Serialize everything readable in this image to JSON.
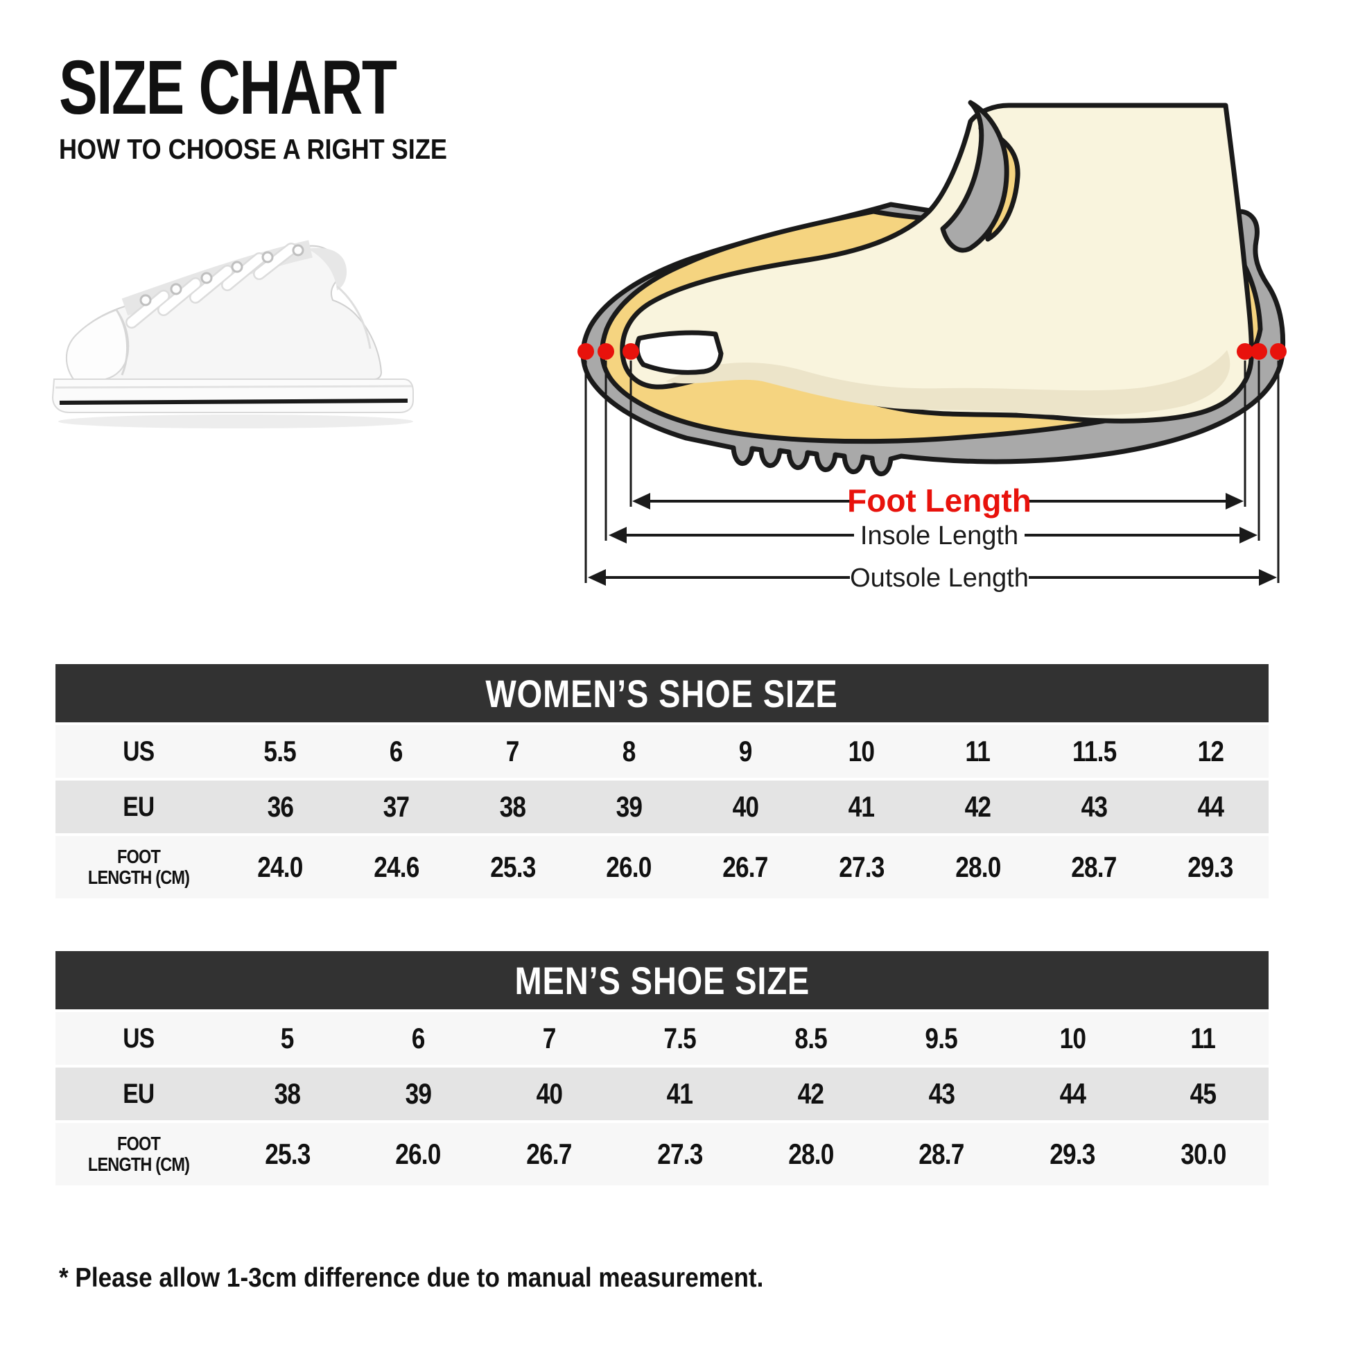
{
  "header": {
    "title": "SIZE CHART",
    "subtitle": "HOW TO CHOOSE A RIGHT SIZE"
  },
  "diagram": {
    "foot_length_label": "Foot Length",
    "insole_length_label": "Insole Length",
    "outsole_length_label": "Outsole Length"
  },
  "tables": {
    "women": {
      "title": "WOMEN’S SHOE SIZE",
      "rows": [
        {
          "key": "us",
          "label": "US",
          "values": [
            "5.5",
            "6",
            "7",
            "8",
            "9",
            "10",
            "11",
            "11.5",
            "12"
          ]
        },
        {
          "key": "eu",
          "label": "EU",
          "values": [
            "36",
            "37",
            "38",
            "39",
            "40",
            "41",
            "42",
            "43",
            "44"
          ]
        },
        {
          "key": "foot_length_cm",
          "label": "FOOT LENGTH (CM)",
          "label_lines": [
            "FOOT",
            "LENGTH (CM)"
          ],
          "values": [
            "24.0",
            "24.6",
            "25.3",
            "26.0",
            "26.7",
            "27.3",
            "28.0",
            "28.7",
            "29.3"
          ]
        }
      ]
    },
    "men": {
      "title": "MEN’S SHOE SIZE",
      "rows": [
        {
          "key": "us",
          "label": "US",
          "values": [
            "5",
            "6",
            "7",
            "7.5",
            "8.5",
            "9.5",
            "10",
            "11"
          ]
        },
        {
          "key": "eu",
          "label": "EU",
          "values": [
            "38",
            "39",
            "40",
            "41",
            "42",
            "43",
            "44",
            "45"
          ]
        },
        {
          "key": "foot_length_cm",
          "label": "FOOT LENGTH (CM)",
          "label_lines": [
            "FOOT",
            "LENGTH (CM)"
          ],
          "values": [
            "25.3",
            "26.0",
            "26.7",
            "27.3",
            "28.0",
            "28.7",
            "29.3",
            "30.0"
          ]
        }
      ]
    }
  },
  "chart_data": [
    {
      "type": "table",
      "title": "WOMEN’S SHOE SIZE",
      "rows": [
        {
          "label": "US",
          "values": [
            "5.5",
            "6",
            "7",
            "8",
            "9",
            "10",
            "11",
            "11.5",
            "12"
          ]
        },
        {
          "label": "EU",
          "values": [
            "36",
            "37",
            "38",
            "39",
            "40",
            "41",
            "42",
            "43",
            "44"
          ]
        },
        {
          "label": "FOOT LENGTH (CM)",
          "values": [
            "24.0",
            "24.6",
            "25.3",
            "26.0",
            "26.7",
            "27.3",
            "28.0",
            "28.7",
            "29.3"
          ]
        }
      ]
    },
    {
      "type": "table",
      "title": "MEN’S SHOE SIZE",
      "rows": [
        {
          "label": "US",
          "values": [
            "5",
            "6",
            "7",
            "7.5",
            "8.5",
            "9.5",
            "10",
            "11"
          ]
        },
        {
          "label": "EU",
          "values": [
            "38",
            "39",
            "40",
            "41",
            "42",
            "43",
            "44",
            "45"
          ]
        },
        {
          "label": "FOOT LENGTH (CM)",
          "values": [
            "25.3",
            "26.0",
            "26.7",
            "27.3",
            "28.0",
            "28.7",
            "29.3",
            "30.0"
          ]
        }
      ]
    }
  ],
  "footnote": {
    "text": "* Please allow 1-3cm difference due to manual measurement."
  },
  "colors": {
    "table_header_bar": "#323232",
    "row_light": "#f7f7f7",
    "row_alt": "#e4e4e4",
    "accent_red": "#e8120c",
    "shoe_gray": "#a9a9a9",
    "insole_yellow": "#f5d480",
    "foot_cream": "#f9f4dd",
    "foot_shade": "#ece4c9",
    "outline": "#1a1a1a"
  }
}
